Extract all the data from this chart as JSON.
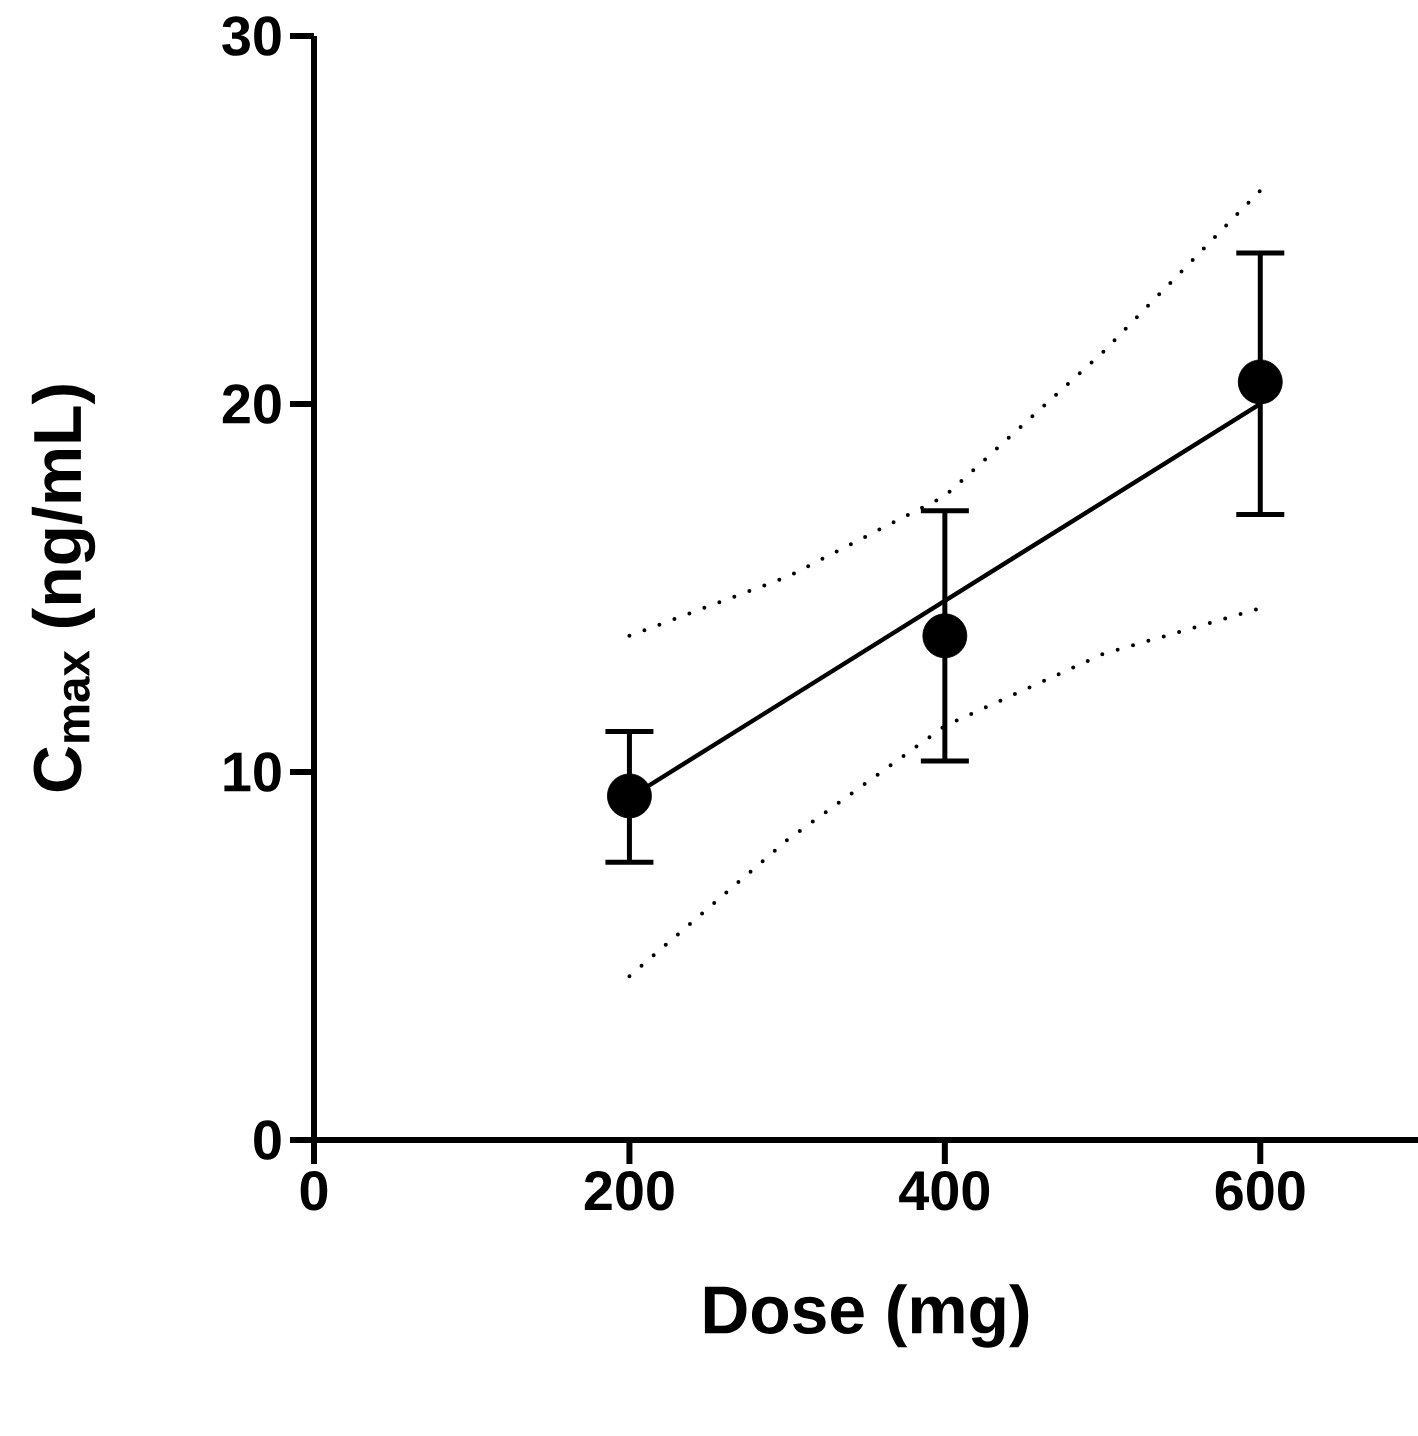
{
  "chart_data": {
    "type": "scatter",
    "xlabel": "Dose (mg)",
    "ylabel": "C$_{max}$ (ng/mL)",
    "xlim": [
      0,
      700
    ],
    "ylim": [
      0,
      30
    ],
    "xticks": [
      0,
      200,
      400,
      600
    ],
    "yticks": [
      0,
      10,
      20,
      30
    ],
    "grid": false,
    "series": [
      {
        "color": "#000000",
        "marker": "circle",
        "x": [
          200,
          400,
          600
        ],
        "values": [
          9.35,
          13.7,
          20.6
        ],
        "errors": [
          [
            7.55,
            11.1
          ],
          [
            10.3,
            17.1
          ],
          [
            17.0,
            24.1
          ]
        ]
      },
      {
        "type": "line",
        "color": "#000000",
        "line_style": "solid",
        "marker": "none",
        "x": [
          200,
          600
        ],
        "values": [
          9.3,
          20.0
        ]
      },
      {
        "type": "line",
        "color": "#000000",
        "line_style": "dotted",
        "marker": "none",
        "x": [
          200,
          300,
          400,
          500,
          600
        ],
        "values": [
          13.7,
          15.3,
          17.5,
          21.4,
          25.8
        ]
      },
      {
        "type": "line",
        "color": "#000000",
        "line_style": "dotted",
        "marker": "none",
        "x": [
          200,
          300,
          400,
          500,
          600
        ],
        "values": [
          4.45,
          8.15,
          11.25,
          13.2,
          14.45
        ]
      }
    ]
  }
}
